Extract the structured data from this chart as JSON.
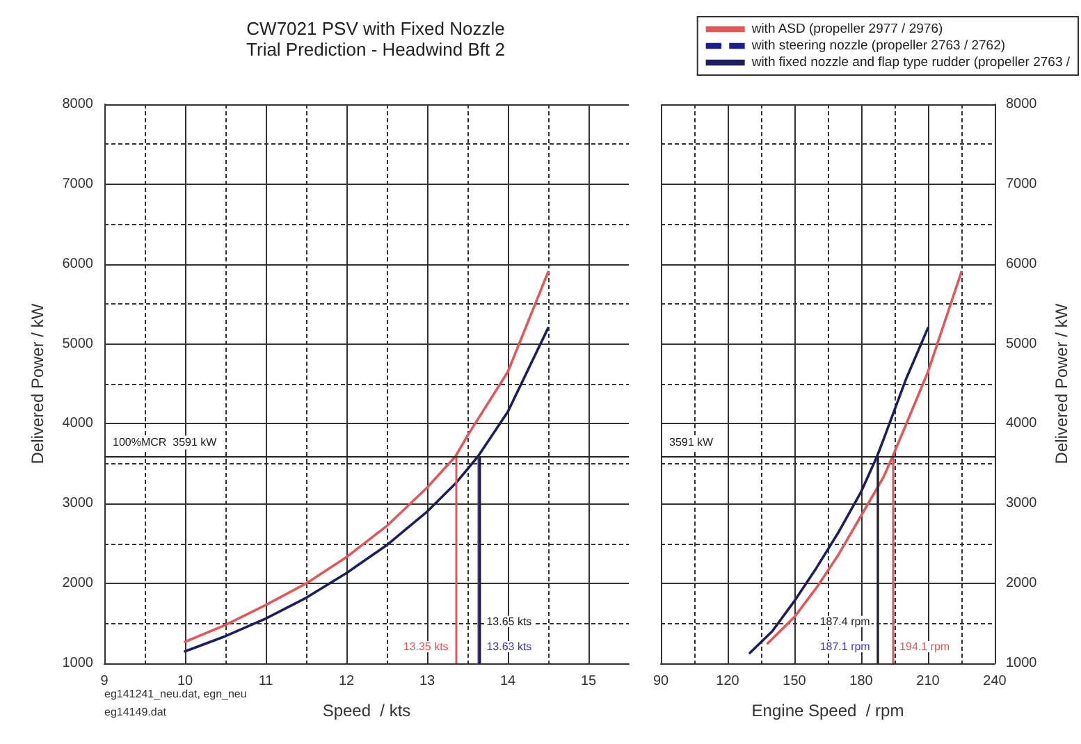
{
  "chart_data": [
    {
      "type": "line",
      "title": "CW7021 PSV with Fixed Nozzle\nTrial Prediction - Headwind Bft 2",
      "xlabel": "Speed  / kts",
      "ylabel": "Delivered Power / kW",
      "xlim": [
        9,
        15.5
      ],
      "xticks": [
        9,
        10,
        11,
        12,
        13,
        14,
        15
      ],
      "ylim": [
        1000,
        8000
      ],
      "yticks": [
        1000,
        2000,
        3000,
        4000,
        5000,
        6000,
        7000,
        8000
      ],
      "grid": true,
      "legend": false,
      "marker": "none",
      "series": [
        {
          "color": "#e0585a",
          "x": [
            10,
            10.5,
            11,
            11.5,
            12,
            12.5,
            13,
            13.35,
            13.5,
            14,
            14.5
          ],
          "values": [
            1270,
            1480,
            1730,
            2000,
            2330,
            2720,
            3200,
            3590,
            3850,
            4650,
            5900
          ]
        },
        {
          "color": "#1c1f5c",
          "x": [
            10,
            10.5,
            11,
            11.5,
            12,
            12.5,
            13,
            13.35,
            13.63,
            14,
            14.5
          ],
          "values": [
            1150,
            1340,
            1560,
            1820,
            2130,
            2480,
            2900,
            3250,
            3590,
            4150,
            5200
          ]
        }
      ],
      "ref_lines": [
        {
          "axis": "y",
          "value": 3591,
          "label": "100%MCR  3591 kW",
          "color": "#222222"
        },
        {
          "axis": "x",
          "value": 13.35,
          "label": "13.35 kts",
          "color": "#e0585a"
        },
        {
          "axis": "x",
          "value": 13.63,
          "label": "13.63 kts",
          "color": "#3a3ab8"
        },
        {
          "axis": "x",
          "value": 13.65,
          "label": "13.65 kts",
          "color": "#222222"
        }
      ],
      "annotations": [
        "eg141241_neu.dat, egn_neu",
        "eg14149.dat"
      ]
    },
    {
      "type": "line",
      "xlabel": "Engine Speed  / rpm",
      "ylabel": "Delivered Power / kW",
      "xlim": [
        90,
        240
      ],
      "xticks": [
        90,
        120,
        150,
        180,
        210,
        240
      ],
      "ylim": [
        1000,
        8000
      ],
      "yticks": [
        1000,
        2000,
        3000,
        4000,
        5000,
        6000,
        7000,
        8000
      ],
      "grid": true,
      "legend": "top right",
      "marker": "none",
      "series": [
        {
          "name": "with ASD (propeller 2977 / 2976)",
          "color": "#e0585a",
          "x": [
            138,
            150,
            160,
            170,
            180,
            190,
            194.1,
            200,
            210,
            225
          ],
          "values": [
            1250,
            1580,
            1950,
            2370,
            2850,
            3330,
            3590,
            3980,
            4650,
            5900
          ]
        },
        {
          "name": "with steering nozzle (propeller 2763 / 2762)",
          "color": "#1c1f8a",
          "line_style": "dashed"
        },
        {
          "name": "with fixed nozzle and flap type rudder (propeller 2763 /",
          "color": "#1c1f5c",
          "x": [
            130,
            140,
            150,
            160,
            170,
            180,
            187.1,
            190,
            200,
            210
          ],
          "values": [
            1130,
            1400,
            1780,
            2200,
            2650,
            3150,
            3590,
            3800,
            4550,
            5200
          ]
        }
      ],
      "ref_lines": [
        {
          "axis": "y",
          "value": 3591,
          "label": "3591 kW",
          "color": "#222222"
        },
        {
          "axis": "x",
          "value": 187.4,
          "label": "187.4 rpm",
          "color": "#222222"
        },
        {
          "axis": "x",
          "value": 187.1,
          "label": "187.1 rpm",
          "color": "#3a3ab8"
        },
        {
          "axis": "x",
          "value": 194.1,
          "label": "194.1 rpm",
          "color": "#e0585a"
        }
      ]
    }
  ]
}
